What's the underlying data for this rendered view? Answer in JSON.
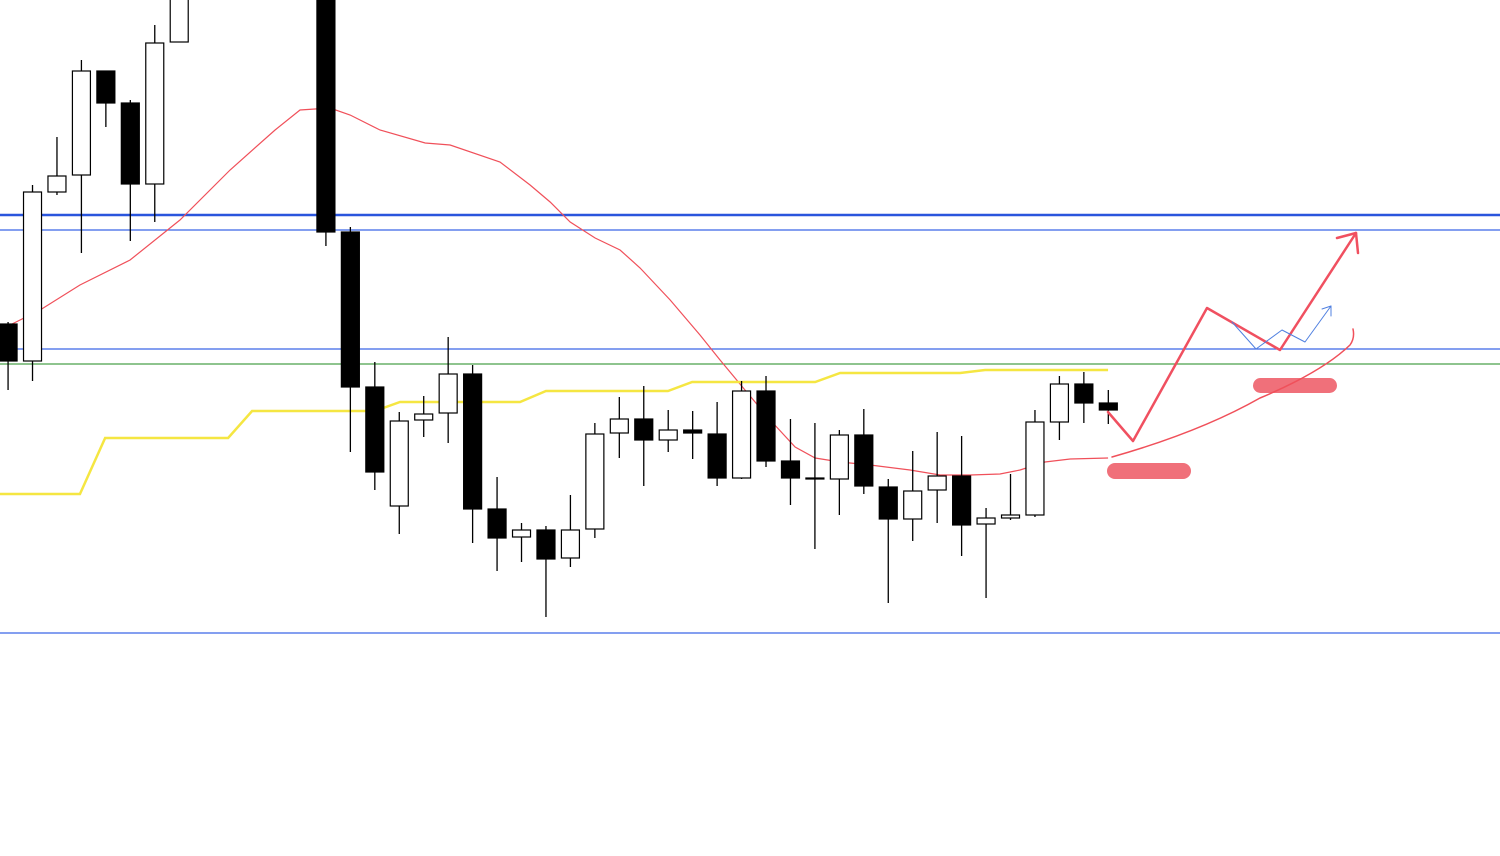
{
  "chart_data": {
    "type": "candlestick",
    "x": [
      0,
      1,
      2,
      3,
      4,
      5,
      6,
      7,
      13,
      14,
      15,
      16,
      17,
      18,
      19,
      20,
      21,
      22,
      23,
      24,
      25,
      26,
      27,
      28,
      29,
      30,
      31,
      32,
      33,
      34,
      35,
      36,
      37,
      38,
      39,
      40,
      41,
      42,
      43,
      44,
      45
    ],
    "open": [
      532,
      495,
      664,
      681,
      785,
      753,
      672,
      814,
      880,
      624,
      469,
      350,
      436,
      443,
      482,
      347,
      319,
      326,
      298,
      327,
      423,
      437,
      416,
      426,
      422,
      378,
      465,
      395,
      378,
      377,
      421,
      369,
      337,
      366,
      380,
      332,
      338,
      341,
      434,
      472,
      453
    ],
    "high": [
      534,
      671,
      719,
      796,
      785,
      756,
      831,
      870,
      890,
      629,
      494,
      444,
      460,
      519,
      491,
      379,
      333,
      330,
      361,
      433,
      459,
      470,
      446,
      445,
      454,
      475,
      480,
      437,
      433,
      426,
      447,
      377,
      405,
      424,
      420,
      348,
      382,
      446,
      480,
      484,
      466
    ],
    "low": [
      466,
      475,
      661,
      603,
      729,
      615,
      634,
      814,
      610,
      404,
      366,
      322,
      419,
      413,
      313,
      285,
      294,
      239,
      289,
      318,
      398,
      370,
      404,
      397,
      370,
      377,
      389,
      351,
      307,
      341,
      362,
      253,
      315,
      333,
      300,
      258,
      336,
      339,
      416,
      433,
      432
    ],
    "close": [
      495,
      664,
      680,
      785,
      753,
      672,
      813,
      860,
      624,
      469,
      384,
      435,
      442,
      482,
      347,
      318,
      326,
      297,
      326,
      422,
      437,
      416,
      426,
      423,
      378,
      465,
      395,
      378,
      377,
      421,
      370,
      337,
      365,
      380,
      331,
      338,
      341,
      434,
      472,
      453,
      446
    ],
    "up_color": "#ffffff",
    "down_color": "#000000",
    "xlim": [
      -0.33,
      61.02
    ],
    "ylim": [
      0,
      856
    ],
    "overlays": [
      {
        "color": "#f0505a",
        "x": [
          -0.33,
          1.31,
          2.94,
          4.99,
          7.03,
          9.08,
          10.92,
          11.94,
          13.17,
          13.99,
          15.21,
          17.06,
          18.08,
          20.12,
          21.35,
          22.17,
          22.99,
          24.01,
          25.03,
          25.85,
          27.08,
          28.3,
          29.12,
          30.14,
          31.17,
          32.19,
          33.01,
          34.03,
          35.26,
          36.89,
          38.12,
          39.35,
          40.57,
          41.39,
          42.41,
          43.44,
          44.99
        ],
        "values": [
          526,
          546,
          571,
          596,
          636,
          686,
          726,
          746,
          748,
          741,
          726,
          713,
          711,
          694,
          671,
          654,
          634,
          618,
          606,
          588,
          556,
          521,
          496,
          466,
          436,
          409,
          398,
          394,
          391,
          386,
          381,
          381,
          382,
          386,
          394,
          397,
          398
        ]
      },
      {
        "color": "#f5e642",
        "x": [
          -0.33,
          2.94,
          3.97,
          9.0,
          9.98,
          15.01,
          16.03,
          20.94,
          22.0,
          26.99,
          27.98,
          33.01,
          34.03,
          38.94,
          39.96,
          44.99
        ],
        "values": [
          362,
          362,
          418,
          418,
          445,
          445,
          454,
          454,
          465,
          465,
          474,
          474,
          483,
          483,
          486,
          486
        ]
      }
    ],
    "levels": [
      {
        "value": 641,
        "color": "#2a55dd"
      },
      {
        "value": 626,
        "color": "#3a66e6"
      },
      {
        "value": 507,
        "color": "#3a66e6"
      },
      {
        "value": 492,
        "color": "#4aa04a"
      },
      {
        "value": 223,
        "color": "#3a66e6"
      }
    ]
  }
}
